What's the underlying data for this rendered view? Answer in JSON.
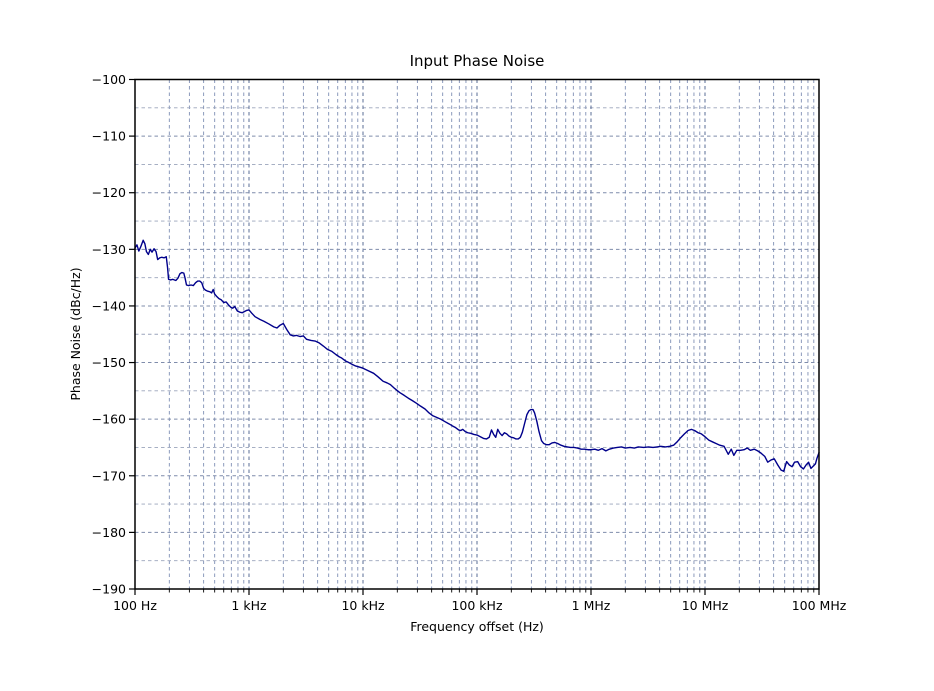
{
  "figure": {
    "background": "#ffffff"
  },
  "chart_data": {
    "type": "line",
    "title": "Input Phase Noise",
    "xlabel": "Frequency offset (Hz)",
    "ylabel": "Phase Noise (dBc/Hz)",
    "xscale": "log",
    "xlim": [
      100,
      100000000
    ],
    "ylim": [
      -190,
      -100
    ],
    "grid": true,
    "legend_position": "none",
    "colors": {
      "line": "#00008b",
      "grid_major_x": "#5a6c96",
      "grid_minor_x": "#7f8fb4",
      "grid_major_y": "#7f8cab",
      "grid_minor_y": "#9aa4bb",
      "spine": "#000000",
      "text": "#000000"
    },
    "x_ticks": [
      {
        "value": 100,
        "label": "100 Hz"
      },
      {
        "value": 1000,
        "label": "1 kHz"
      },
      {
        "value": 10000,
        "label": "10 kHz"
      },
      {
        "value": 100000,
        "label": "100 kHz"
      },
      {
        "value": 1000000,
        "label": "1 MHz"
      },
      {
        "value": 10000000,
        "label": "10 MHz"
      },
      {
        "value": 100000000,
        "label": "100 MHz"
      }
    ],
    "y_ticks": [
      {
        "value": -100,
        "label": "−100"
      },
      {
        "value": -110,
        "label": "−110"
      },
      {
        "value": -120,
        "label": "−120"
      },
      {
        "value": -130,
        "label": "−130"
      },
      {
        "value": -140,
        "label": "−140"
      },
      {
        "value": -150,
        "label": "−150"
      },
      {
        "value": -160,
        "label": "−160"
      },
      {
        "value": -170,
        "label": "−170"
      },
      {
        "value": -180,
        "label": "−180"
      },
      {
        "value": -190,
        "label": "−190"
      }
    ],
    "series": [
      {
        "name": "Input Phase Noise",
        "points": [
          [
            100,
            -129.8
          ],
          [
            104,
            -129.2
          ],
          [
            108,
            -130.3
          ],
          [
            112,
            -129.6
          ],
          [
            118,
            -128.4
          ],
          [
            122,
            -129.0
          ],
          [
            126,
            -130.4
          ],
          [
            131,
            -130.9
          ],
          [
            136,
            -130.0
          ],
          [
            141,
            -130.5
          ],
          [
            147,
            -129.9
          ],
          [
            153,
            -130.4
          ],
          [
            158,
            -131.8
          ],
          [
            165,
            -131.5
          ],
          [
            172,
            -131.4
          ],
          [
            180,
            -131.5
          ],
          [
            188,
            -131.3
          ],
          [
            193,
            -133.2
          ],
          [
            197,
            -135.3
          ],
          [
            205,
            -135.4
          ],
          [
            215,
            -135.3
          ],
          [
            228,
            -135.5
          ],
          [
            238,
            -135.1
          ],
          [
            248,
            -134.3
          ],
          [
            258,
            -134.1
          ],
          [
            268,
            -134.2
          ],
          [
            275,
            -135.1
          ],
          [
            283,
            -136.3
          ],
          [
            295,
            -136.4
          ],
          [
            310,
            -136.3
          ],
          [
            325,
            -136.4
          ],
          [
            340,
            -135.9
          ],
          [
            355,
            -135.6
          ],
          [
            370,
            -135.6
          ],
          [
            385,
            -135.9
          ],
          [
            400,
            -136.9
          ],
          [
            415,
            -137.2
          ],
          [
            435,
            -137.4
          ],
          [
            455,
            -137.5
          ],
          [
            470,
            -137.7
          ],
          [
            485,
            -137.1
          ],
          [
            500,
            -137.9
          ],
          [
            520,
            -138.3
          ],
          [
            545,
            -138.7
          ],
          [
            570,
            -138.9
          ],
          [
            600,
            -139.4
          ],
          [
            630,
            -139.3
          ],
          [
            660,
            -139.8
          ],
          [
            690,
            -140.2
          ],
          [
            720,
            -140.4
          ],
          [
            750,
            -140.1
          ],
          [
            790,
            -140.9
          ],
          [
            830,
            -141.1
          ],
          [
            870,
            -141.2
          ],
          [
            910,
            -141.0
          ],
          [
            950,
            -140.8
          ],
          [
            1000,
            -140.7
          ],
          [
            1060,
            -141.3
          ],
          [
            1130,
            -141.9
          ],
          [
            1250,
            -142.4
          ],
          [
            1350,
            -142.7
          ],
          [
            1500,
            -143.2
          ],
          [
            1650,
            -143.7
          ],
          [
            1760,
            -143.9
          ],
          [
            1870,
            -143.4
          ],
          [
            2000,
            -143.1
          ],
          [
            2150,
            -144.2
          ],
          [
            2300,
            -145.1
          ],
          [
            2450,
            -145.3
          ],
          [
            2600,
            -145.2
          ],
          [
            2800,
            -145.4
          ],
          [
            3000,
            -145.3
          ],
          [
            3200,
            -145.9
          ],
          [
            3500,
            -146.1
          ],
          [
            3800,
            -146.2
          ],
          [
            4100,
            -146.5
          ],
          [
            4500,
            -147.1
          ],
          [
            4900,
            -147.7
          ],
          [
            5300,
            -148.0
          ],
          [
            5800,
            -148.6
          ],
          [
            6200,
            -149.0
          ],
          [
            6500,
            -149.2
          ],
          [
            7000,
            -149.7
          ],
          [
            7500,
            -150.0
          ],
          [
            8000,
            -150.3
          ],
          [
            8600,
            -150.6
          ],
          [
            9300,
            -150.8
          ],
          [
            10000,
            -151.0
          ],
          [
            11000,
            -151.4
          ],
          [
            12400,
            -151.9
          ],
          [
            13500,
            -152.5
          ],
          [
            15000,
            -153.3
          ],
          [
            16300,
            -153.6
          ],
          [
            17400,
            -153.9
          ],
          [
            19000,
            -154.6
          ],
          [
            21000,
            -155.3
          ],
          [
            23000,
            -155.8
          ],
          [
            25000,
            -156.3
          ],
          [
            27000,
            -156.7
          ],
          [
            29500,
            -157.2
          ],
          [
            32000,
            -157.7
          ],
          [
            35000,
            -158.2
          ],
          [
            38000,
            -158.9
          ],
          [
            41000,
            -159.4
          ],
          [
            44500,
            -159.7
          ],
          [
            48000,
            -160.0
          ],
          [
            52000,
            -160.4
          ],
          [
            56500,
            -160.8
          ],
          [
            61000,
            -161.2
          ],
          [
            65000,
            -161.5
          ],
          [
            69000,
            -161.9
          ],
          [
            72000,
            -162.0
          ],
          [
            75000,
            -161.8
          ],
          [
            79000,
            -162.2
          ],
          [
            83000,
            -162.4
          ],
          [
            88000,
            -162.5
          ],
          [
            94000,
            -162.7
          ],
          [
            100000,
            -162.8
          ],
          [
            107000,
            -163.1
          ],
          [
            114000,
            -163.4
          ],
          [
            121000,
            -163.5
          ],
          [
            128000,
            -163.2
          ],
          [
            134000,
            -161.9
          ],
          [
            140000,
            -162.7
          ],
          [
            146000,
            -163.2
          ],
          [
            152000,
            -161.8
          ],
          [
            159000,
            -162.5
          ],
          [
            166000,
            -162.9
          ],
          [
            174000,
            -162.4
          ],
          [
            182000,
            -162.6
          ],
          [
            191000,
            -163.0
          ],
          [
            200000,
            -163.2
          ],
          [
            210000,
            -163.3
          ],
          [
            220000,
            -163.5
          ],
          [
            230000,
            -163.5
          ],
          [
            240000,
            -163.2
          ],
          [
            250000,
            -162.3
          ],
          [
            262000,
            -160.7
          ],
          [
            274000,
            -159.2
          ],
          [
            286000,
            -158.5
          ],
          [
            298000,
            -158.3
          ],
          [
            310000,
            -158.3
          ],
          [
            320000,
            -158.9
          ],
          [
            335000,
            -160.4
          ],
          [
            350000,
            -162.2
          ],
          [
            368000,
            -163.8
          ],
          [
            385000,
            -164.3
          ],
          [
            405000,
            -164.5
          ],
          [
            430000,
            -164.5
          ],
          [
            455000,
            -164.2
          ],
          [
            480000,
            -164.1
          ],
          [
            510000,
            -164.3
          ],
          [
            545000,
            -164.6
          ],
          [
            580000,
            -164.8
          ],
          [
            620000,
            -164.9
          ],
          [
            660000,
            -165.0
          ],
          [
            710000,
            -165.0
          ],
          [
            760000,
            -165.1
          ],
          [
            820000,
            -165.3
          ],
          [
            880000,
            -165.3
          ],
          [
            940000,
            -165.4
          ],
          [
            1000000,
            -165.4
          ],
          [
            1080000,
            -165.3
          ],
          [
            1160000,
            -165.5
          ],
          [
            1250000,
            -165.2
          ],
          [
            1350000,
            -165.6
          ],
          [
            1450000,
            -165.3
          ],
          [
            1570000,
            -165.1
          ],
          [
            1700000,
            -165.0
          ],
          [
            1850000,
            -164.9
          ],
          [
            2000000,
            -165.1
          ],
          [
            2200000,
            -165.0
          ],
          [
            2400000,
            -165.1
          ],
          [
            2600000,
            -164.9
          ],
          [
            2900000,
            -165.0
          ],
          [
            3200000,
            -164.9
          ],
          [
            3500000,
            -165.0
          ],
          [
            3800000,
            -164.9
          ],
          [
            4100000,
            -164.8
          ],
          [
            4500000,
            -164.9
          ],
          [
            4900000,
            -164.8
          ],
          [
            5300000,
            -164.6
          ],
          [
            5700000,
            -164.0
          ],
          [
            6100000,
            -163.3
          ],
          [
            6600000,
            -162.6
          ],
          [
            7100000,
            -162.0
          ],
          [
            7600000,
            -161.8
          ],
          [
            8100000,
            -162.0
          ],
          [
            8700000,
            -162.4
          ],
          [
            9300000,
            -162.6
          ],
          [
            10000000,
            -163.1
          ],
          [
            10800000,
            -163.7
          ],
          [
            11600000,
            -164.0
          ],
          [
            12500000,
            -164.3
          ],
          [
            13500000,
            -164.6
          ],
          [
            14700000,
            -164.8
          ],
          [
            16000000,
            -166.2
          ],
          [
            17000000,
            -165.3
          ],
          [
            17900000,
            -166.4
          ],
          [
            19000000,
            -165.5
          ],
          [
            20500000,
            -165.5
          ],
          [
            22000000,
            -165.4
          ],
          [
            23500000,
            -165.1
          ],
          [
            25000000,
            -165.5
          ],
          [
            27000000,
            -165.3
          ],
          [
            29000000,
            -165.6
          ],
          [
            31000000,
            -166.0
          ],
          [
            33500000,
            -166.6
          ],
          [
            35500000,
            -167.6
          ],
          [
            38000000,
            -167.2
          ],
          [
            40500000,
            -167.0
          ],
          [
            43500000,
            -168.1
          ],
          [
            46500000,
            -169.0
          ],
          [
            49000000,
            -169.2
          ],
          [
            52000000,
            -167.5
          ],
          [
            55000000,
            -168.1
          ],
          [
            58000000,
            -168.4
          ],
          [
            61000000,
            -167.6
          ],
          [
            65000000,
            -167.5
          ],
          [
            69000000,
            -168.4
          ],
          [
            73000000,
            -168.8
          ],
          [
            77000000,
            -168.1
          ],
          [
            81000000,
            -167.6
          ],
          [
            85000000,
            -168.7
          ],
          [
            89000000,
            -168.3
          ],
          [
            93000000,
            -167.9
          ],
          [
            96000000,
            -166.9
          ],
          [
            100000000,
            -165.9
          ]
        ]
      }
    ]
  }
}
